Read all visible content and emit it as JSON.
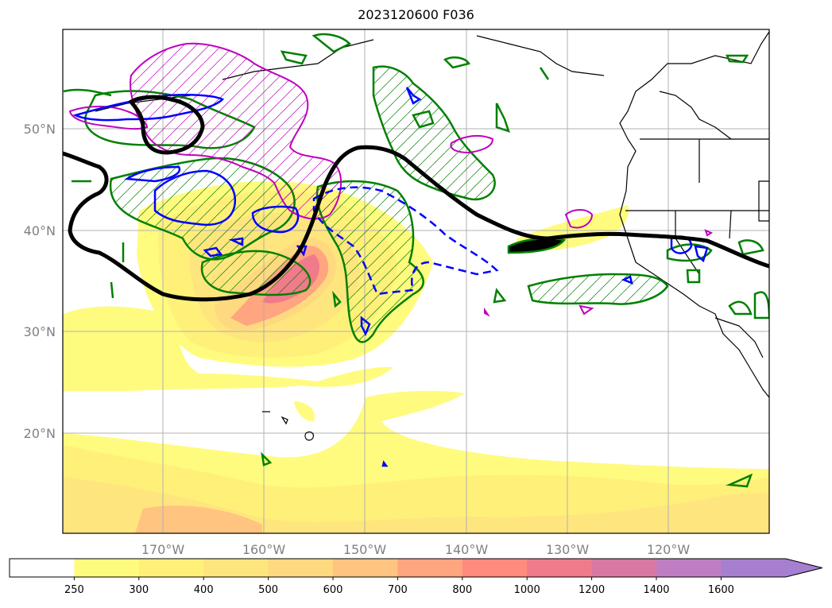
{
  "title": "2023120600 F036",
  "map": {
    "lat_labels": [
      "50°N",
      "40°N",
      "30°N",
      "20°N"
    ],
    "lon_labels": [
      "170°W",
      "160°W",
      "150°W",
      "140°W",
      "130°W",
      "120°W"
    ]
  },
  "colorbar": {
    "ticks": [
      "250",
      "300",
      "400",
      "500",
      "600",
      "700",
      "800",
      "1000",
      "1200",
      "1400",
      "1600"
    ],
    "colors": [
      "#ffffff",
      "#fffb7f",
      "#fff07a",
      "#ffe57e",
      "#ffd97f",
      "#ffc47f",
      "#ffa57f",
      "#ff8b7f",
      "#f07b8a",
      "#d978a2",
      "#bf7ec2",
      "#a77fd0",
      "#a77fd0"
    ],
    "extend": "max"
  },
  "colors": {
    "jet_contour": "#000000",
    "green_contour": "#008000",
    "blue_contour": "#0000ff",
    "magenta_contour": "#bf00bf"
  }
}
